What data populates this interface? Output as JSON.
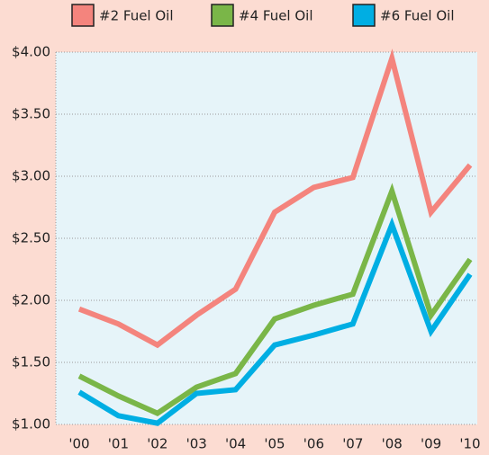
{
  "chart_data": {
    "type": "line",
    "categories": [
      "'00",
      "'01",
      "'02",
      "'03",
      "'04",
      "'05",
      "'06",
      "'07",
      "'08",
      "'09",
      "'10"
    ],
    "series": [
      {
        "name": "#2 Fuel Oil",
        "color": "#f4847d",
        "values": [
          1.93,
          1.81,
          1.64,
          1.88,
          2.09,
          2.71,
          2.91,
          2.99,
          3.95,
          2.71,
          3.09
        ]
      },
      {
        "name": "#4 Fuel Oil",
        "color": "#7ab648",
        "values": [
          1.39,
          1.23,
          1.09,
          1.3,
          1.41,
          1.85,
          1.96,
          2.05,
          2.88,
          1.88,
          2.33
        ]
      },
      {
        "name": "#6 Fuel Oil",
        "color": "#00aee3",
        "values": [
          1.26,
          1.07,
          1.01,
          1.25,
          1.28,
          1.64,
          1.72,
          1.81,
          2.61,
          1.75,
          2.21
        ]
      }
    ],
    "ylim": [
      1.0,
      4.0
    ],
    "yticks": [
      {
        "value": 1.0,
        "label": "$1.00"
      },
      {
        "value": 1.5,
        "label": "$1.50"
      },
      {
        "value": 2.0,
        "label": "$2.00"
      },
      {
        "value": 2.5,
        "label": "$2.50"
      },
      {
        "value": 3.0,
        "label": "$3.00"
      },
      {
        "value": 3.5,
        "label": "$3.50"
      },
      {
        "value": 4.0,
        "label": "$4.00"
      }
    ],
    "grid": true
  }
}
